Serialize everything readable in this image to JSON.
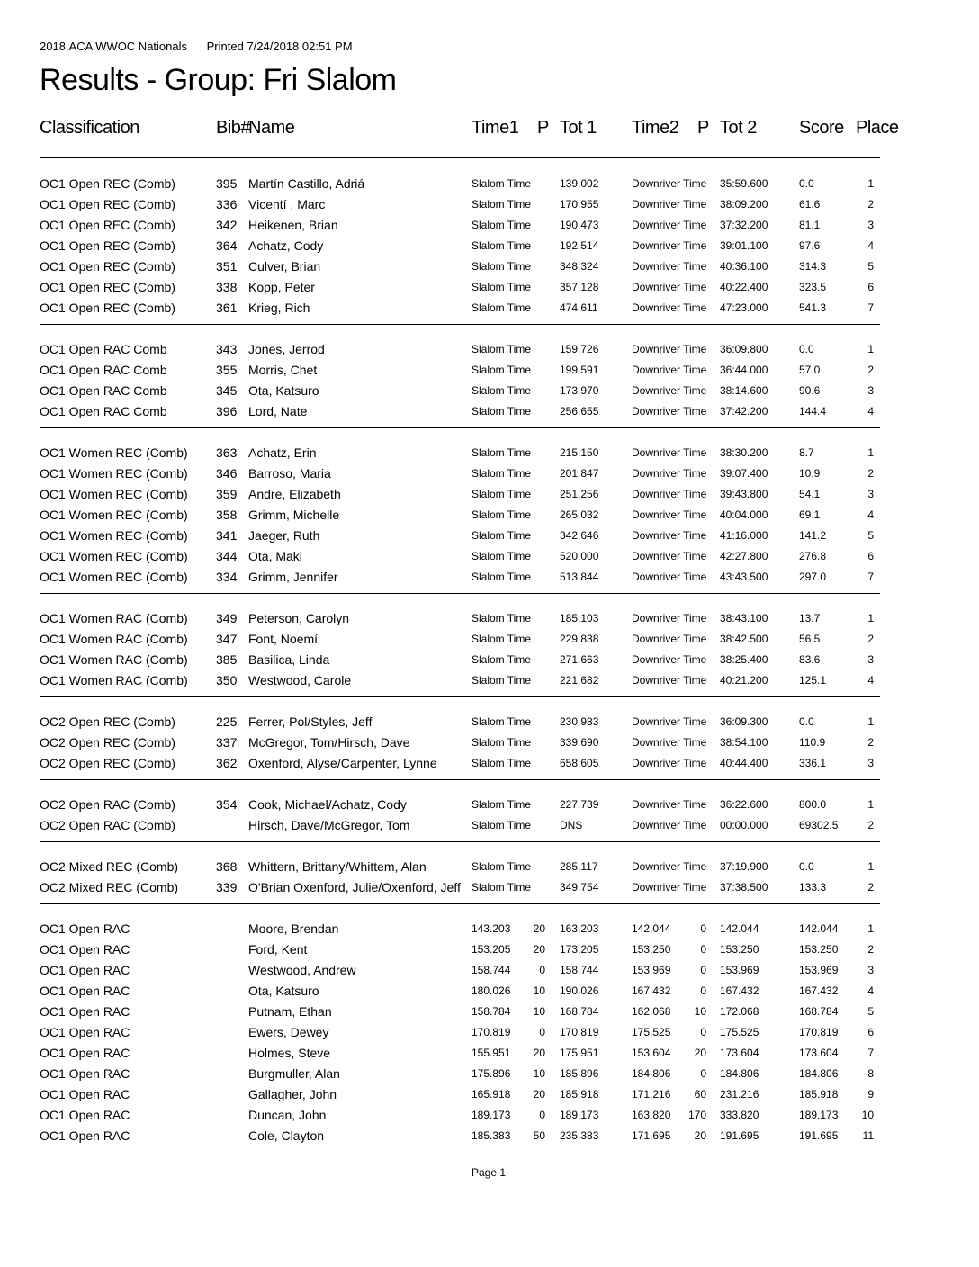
{
  "header": {
    "event": "2018.ACA WWOC Nationals",
    "printed": "Printed 7/24/2018  02:51 PM"
  },
  "title": "Results - Group: Fri Slalom",
  "columns": {
    "classification": "Classification",
    "bib": "Bib#",
    "name": "Name",
    "time1": "Time1",
    "p1": "P",
    "tot1": "Tot 1",
    "time2": "Time2",
    "p2": "P",
    "tot2": "Tot 2",
    "score": "Score",
    "place": "Place"
  },
  "groups": [
    {
      "rows": [
        [
          "OC1 Open REC (Comb)",
          "395",
          "Martín Castillo, Adriá",
          "Slalom Time",
          "",
          "139.002",
          "Downriver Time",
          "",
          "35:59.600",
          "0.0",
          "1"
        ],
        [
          "OC1 Open REC (Comb)",
          "336",
          "Vicentí , Marc",
          "Slalom Time",
          "",
          "170.955",
          "Downriver Time",
          "",
          "38:09.200",
          "61.6",
          "2"
        ],
        [
          "OC1 Open REC (Comb)",
          "342",
          "Heikenen, Brian",
          "Slalom Time",
          "",
          "190.473",
          "Downriver Time",
          "",
          "37:32.200",
          "81.1",
          "3"
        ],
        [
          "OC1 Open REC (Comb)",
          "364",
          "Achatz, Cody",
          "Slalom Time",
          "",
          "192.514",
          "Downriver Time",
          "",
          "39:01.100",
          "97.6",
          "4"
        ],
        [
          "OC1 Open REC (Comb)",
          "351",
          "Culver, Brian",
          "Slalom Time",
          "",
          "348.324",
          "Downriver Time",
          "",
          "40:36.100",
          "314.3",
          "5"
        ],
        [
          "OC1 Open REC (Comb)",
          "338",
          "Kopp, Peter",
          "Slalom Time",
          "",
          "357.128",
          "Downriver Time",
          "",
          "40:22.400",
          "323.5",
          "6"
        ],
        [
          "OC1 Open REC (Comb)",
          "361",
          "Krieg, Rich",
          "Slalom Time",
          "",
          "474.611",
          "Downriver Time",
          "",
          "47:23.000",
          "541.3",
          "7"
        ]
      ]
    },
    {
      "rows": [
        [
          "OC1 Open RAC Comb",
          "343",
          "Jones, Jerrod",
          "Slalom Time",
          "",
          "159.726",
          "Downriver Time",
          "",
          "36:09.800",
          "0.0",
          "1"
        ],
        [
          "OC1 Open RAC Comb",
          "355",
          "Morris, Chet",
          "Slalom Time",
          "",
          "199.591",
          "Downriver Time",
          "",
          "36:44.000",
          "57.0",
          "2"
        ],
        [
          "OC1 Open RAC Comb",
          "345",
          "Ota, Katsuro",
          "Slalom Time",
          "",
          "173.970",
          "Downriver Time",
          "",
          "38:14.600",
          "90.6",
          "3"
        ],
        [
          "OC1 Open RAC Comb",
          "396",
          "Lord, Nate",
          "Slalom Time",
          "",
          "256.655",
          "Downriver Time",
          "",
          "37:42.200",
          "144.4",
          "4"
        ]
      ]
    },
    {
      "rows": [
        [
          "OC1 Women REC (Comb)",
          "363",
          "Achatz, Erin",
          "Slalom Time",
          "",
          "215.150",
          "Downriver Time",
          "",
          "38:30.200",
          "8.7",
          "1"
        ],
        [
          "OC1 Women REC (Comb)",
          "346",
          "Barroso, Maria",
          "Slalom Time",
          "",
          "201.847",
          "Downriver Time",
          "",
          "39:07.400",
          "10.9",
          "2"
        ],
        [
          "OC1 Women REC (Comb)",
          "359",
          "Andre, Elizabeth",
          "Slalom Time",
          "",
          "251.256",
          "Downriver Time",
          "",
          "39:43.800",
          "54.1",
          "3"
        ],
        [
          "OC1 Women REC (Comb)",
          "358",
          "Grimm, Michelle",
          "Slalom Time",
          "",
          "265.032",
          "Downriver Time",
          "",
          "40:04.000",
          "69.1",
          "4"
        ],
        [
          "OC1 Women REC (Comb)",
          "341",
          "Jaeger, Ruth",
          "Slalom Time",
          "",
          "342.646",
          "Downriver Time",
          "",
          "41:16.000",
          "141.2",
          "5"
        ],
        [
          "OC1 Women REC (Comb)",
          "344",
          "Ota, Maki",
          "Slalom Time",
          "",
          "520.000",
          "Downriver Time",
          "",
          "42:27.800",
          "276.8",
          "6"
        ],
        [
          "OC1 Women REC (Comb)",
          "334",
          "Grimm, Jennifer",
          "Slalom Time",
          "",
          "513.844",
          "Downriver Time",
          "",
          "43:43.500",
          "297.0",
          "7"
        ]
      ]
    },
    {
      "rows": [
        [
          "OC1 Women RAC (Comb)",
          "349",
          "Peterson, Carolyn",
          "Slalom Time",
          "",
          "185.103",
          "Downriver Time",
          "",
          "38:43.100",
          "13.7",
          "1"
        ],
        [
          "OC1 Women RAC (Comb)",
          "347",
          "Font, Noemí",
          "Slalom Time",
          "",
          "229.838",
          "Downriver Time",
          "",
          "38:42.500",
          "56.5",
          "2"
        ],
        [
          "OC1 Women RAC (Comb)",
          "385",
          "Basilica, Linda",
          "Slalom Time",
          "",
          "271.663",
          "Downriver Time",
          "",
          "38:25.400",
          "83.6",
          "3"
        ],
        [
          "OC1 Women RAC (Comb)",
          "350",
          "Westwood, Carole",
          "Slalom Time",
          "",
          "221.682",
          "Downriver Time",
          "",
          "40:21.200",
          "125.1",
          "4"
        ]
      ]
    },
    {
      "rows": [
        [
          "OC2 Open REC (Comb)",
          "225",
          "Ferrer, Pol/Styles, Jeff",
          "Slalom Time",
          "",
          "230.983",
          "Downriver Time",
          "",
          "36:09.300",
          "0.0",
          "1"
        ],
        [
          "OC2 Open REC (Comb)",
          "337",
          "McGregor, Tom/Hirsch, Dave",
          "Slalom Time",
          "",
          "339.690",
          "Downriver Time",
          "",
          "38:54.100",
          "110.9",
          "2"
        ],
        [
          "OC2 Open REC (Comb)",
          "362",
          "Oxenford, Alyse/Carpenter, Lynne",
          "Slalom Time",
          "",
          "658.605",
          "Downriver Time",
          "",
          "40:44.400",
          "336.1",
          "3"
        ]
      ]
    },
    {
      "rows": [
        [
          "OC2 Open RAC (Comb)",
          "354",
          "Cook, Michael/Achatz, Cody",
          "Slalom Time",
          "",
          "227.739",
          "Downriver Time",
          "",
          "36:22.600",
          "800.0",
          "1"
        ],
        [
          "OC2 Open RAC (Comb)",
          "",
          "Hirsch, Dave/McGregor, Tom",
          "Slalom Time",
          "",
          "DNS",
          "Downriver Time",
          "",
          "00:00.000",
          "69302.5",
          "2"
        ]
      ]
    },
    {
      "rows": [
        [
          "OC2 Mixed REC (Comb)",
          "368",
          "Whittern, Brittany/Whittem, Alan",
          "Slalom Time",
          "",
          "285.117",
          "Downriver Time",
          "",
          "37:19.900",
          "0.0",
          "1"
        ],
        [
          "OC2 Mixed REC (Comb)",
          "339",
          "O'Brian Oxenford, Julie/Oxenford, Jeff",
          "Slalom Time",
          "",
          "349.754",
          "Downriver Time",
          "",
          "37:38.500",
          "133.3",
          "2"
        ]
      ]
    },
    {
      "rows": [
        [
          "OC1 Open RAC",
          "",
          "Moore, Brendan",
          "143.203",
          "20",
          "163.203",
          "142.044",
          "0",
          "142.044",
          "142.044",
          "1"
        ],
        [
          "OC1 Open RAC",
          "",
          "Ford, Kent",
          "153.205",
          "20",
          "173.205",
          "153.250",
          "0",
          "153.250",
          "153.250",
          "2"
        ],
        [
          "OC1 Open RAC",
          "",
          "Westwood, Andrew",
          "158.744",
          "0",
          "158.744",
          "153.969",
          "0",
          "153.969",
          "153.969",
          "3"
        ],
        [
          "OC1 Open RAC",
          "",
          "Ota, Katsuro",
          "180.026",
          "10",
          "190.026",
          "167.432",
          "0",
          "167.432",
          "167.432",
          "4"
        ],
        [
          "OC1 Open RAC",
          "",
          "Putnam, Ethan",
          "158.784",
          "10",
          "168.784",
          "162.068",
          "10",
          "172.068",
          "168.784",
          "5"
        ],
        [
          "OC1 Open RAC",
          "",
          "Ewers, Dewey",
          "170.819",
          "0",
          "170.819",
          "175.525",
          "0",
          "175.525",
          "170.819",
          "6"
        ],
        [
          "OC1 Open RAC",
          "",
          "Holmes, Steve",
          "155.951",
          "20",
          "175.951",
          "153.604",
          "20",
          "173.604",
          "173.604",
          "7"
        ],
        [
          "OC1 Open RAC",
          "",
          "Burgmuller, Alan",
          "175.896",
          "10",
          "185.896",
          "184.806",
          "0",
          "184.806",
          "184.806",
          "8"
        ],
        [
          "OC1 Open RAC",
          "",
          "Gallagher, John",
          "165.918",
          "20",
          "185.918",
          "171.216",
          "60",
          "231.216",
          "185.918",
          "9"
        ],
        [
          "OC1 Open RAC",
          "",
          "Duncan, John",
          "189.173",
          "0",
          "189.173",
          "163.820",
          "170",
          "333.820",
          "189.173",
          "10"
        ],
        [
          "OC1 Open RAC",
          "",
          "Cole, Clayton",
          "185.383",
          "50",
          "235.383",
          "171.695",
          "20",
          "191.695",
          "191.695",
          "11"
        ]
      ]
    }
  ],
  "footer": {
    "page": "Page  1"
  }
}
